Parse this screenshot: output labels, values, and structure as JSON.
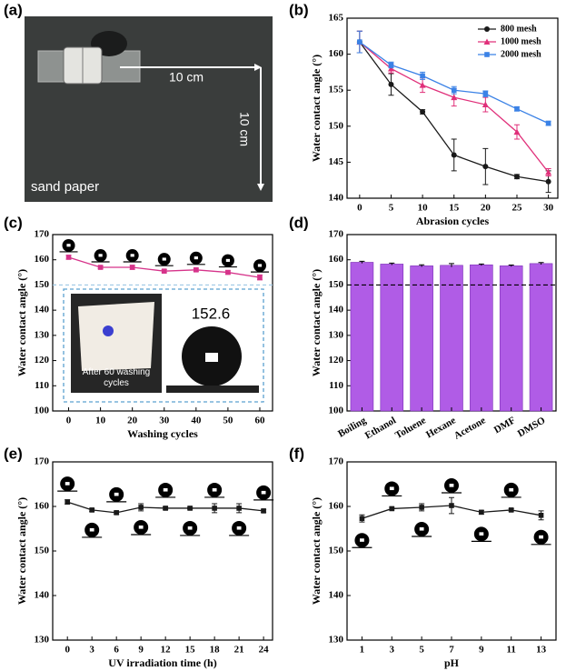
{
  "chart_data": [
    {
      "type": "photo",
      "panel_label": "(a)",
      "labels": [
        "10 cm",
        "10 cm",
        "sand paper"
      ]
    },
    {
      "type": "line",
      "panel_label": "(b)",
      "xlabel": "Abrasion cycles",
      "ylabel": "Water contact angle (°)",
      "x": [
        0,
        5,
        10,
        15,
        20,
        25,
        30
      ],
      "xlim": [
        -2,
        31.5
      ],
      "xticks": [
        0,
        5,
        10,
        15,
        20,
        25,
        30
      ],
      "ylim": [
        140,
        165
      ],
      "yticks": [
        140,
        145,
        150,
        155,
        160,
        165
      ],
      "legend": "upper right",
      "series": [
        {
          "name": "800 mesh",
          "color": "#1a1a1a",
          "marker": "circle",
          "values": [
            161.7,
            155.8,
            152,
            146,
            144.4,
            143,
            142.3
          ],
          "error": [
            1.5,
            1.5,
            0.3,
            2.2,
            2.5,
            0.3,
            1.5
          ]
        },
        {
          "name": "1000 mesh",
          "color": "#e0307a",
          "marker": "triangle",
          "values": [
            161.7,
            158,
            155.7,
            154,
            153,
            149.2,
            143.6
          ],
          "error": [
            1.5,
            0.6,
            1,
            1.2,
            1,
            1,
            0.5
          ]
        },
        {
          "name": "2000 mesh",
          "color": "#3b82e6",
          "marker": "square",
          "values": [
            161.7,
            158.5,
            157,
            155,
            154.5,
            152.4,
            150.4
          ],
          "error": [
            1.5,
            0.4,
            0.5,
            0.5,
            0.4,
            0.3,
            0.3
          ]
        }
      ]
    },
    {
      "type": "line",
      "panel_label": "(c)",
      "xlabel": "Washing cycles",
      "ylabel": "Water contact angle (°)",
      "x": [
        0,
        10,
        20,
        30,
        40,
        50,
        60
      ],
      "xlim": [
        -5,
        64
      ],
      "xticks": [
        0,
        10,
        20,
        30,
        40,
        50,
        60
      ],
      "ylim": [
        100,
        170
      ],
      "yticks": [
        100,
        110,
        120,
        130,
        140,
        150,
        160,
        170
      ],
      "hline": 150,
      "hline_color": "#9ec9e6",
      "series": [
        {
          "color": "#d6338a",
          "marker": "square",
          "values": [
            161,
            157,
            157,
            155.5,
            156,
            155,
            153
          ],
          "error": [
            0.8,
            0.5,
            0.8,
            0.6,
            0.6,
            0.6,
            1
          ]
        }
      ],
      "inset_caption": "After 60 washing cycles",
      "inset_value": "152.6"
    },
    {
      "type": "bar",
      "panel_label": "(d)",
      "ylabel": "Water contact angle (°)",
      "categories": [
        "Boiling",
        "Ethanol",
        "Toluene",
        "Hexane",
        "Acetone",
        "DMF",
        "DMSO"
      ],
      "values": [
        159,
        158.3,
        157.6,
        157.8,
        158,
        157.6,
        158.5
      ],
      "error": [
        0.4,
        0.4,
        0.4,
        0.7,
        0.3,
        0.3,
        0.4
      ],
      "color": "#b05ce6",
      "ylim": [
        100,
        170
      ],
      "yticks": [
        100,
        110,
        120,
        130,
        140,
        150,
        160,
        170
      ],
      "hline": 150,
      "hline_color": "#000000"
    },
    {
      "type": "line",
      "panel_label": "(e)",
      "xlabel": "UV irradiation time (h)",
      "ylabel": "Water contact angle (°)",
      "x": [
        0,
        3,
        6,
        9,
        12,
        15,
        18,
        21,
        24
      ],
      "xlim": [
        -1.8,
        25.1
      ],
      "xticks": [
        0,
        3,
        6,
        9,
        12,
        15,
        18,
        21,
        24
      ],
      "ylim": [
        130,
        170
      ],
      "yticks": [
        130,
        140,
        150,
        160,
        170
      ],
      "series": [
        {
          "color": "#1a1a1a",
          "marker": "square",
          "values": [
            161,
            159.2,
            158.6,
            159.8,
            159.6,
            159.6,
            159.6,
            159.6,
            159
          ],
          "error": [
            0.5,
            0.3,
            0.3,
            0.8,
            0.3,
            0.2,
            1,
            1,
            0.3
          ]
        }
      ]
    },
    {
      "type": "line",
      "panel_label": "(f)",
      "xlabel": "pH",
      "ylabel": "Water contact angle (°)",
      "x": [
        1,
        3,
        5,
        7,
        9,
        11,
        13
      ],
      "xlim": [
        0,
        14
      ],
      "xticks": [
        1,
        3,
        5,
        7,
        9,
        11,
        13
      ],
      "ylim": [
        130,
        170
      ],
      "yticks": [
        130,
        140,
        150,
        160,
        170
      ],
      "series": [
        {
          "color": "#1a1a1a",
          "marker": "square",
          "values": [
            157.3,
            159.5,
            159.8,
            160.2,
            158.7,
            159.2,
            158
          ],
          "error": [
            0.8,
            0.3,
            0.8,
            1.8,
            0.4,
            0.3,
            1
          ]
        }
      ]
    }
  ]
}
